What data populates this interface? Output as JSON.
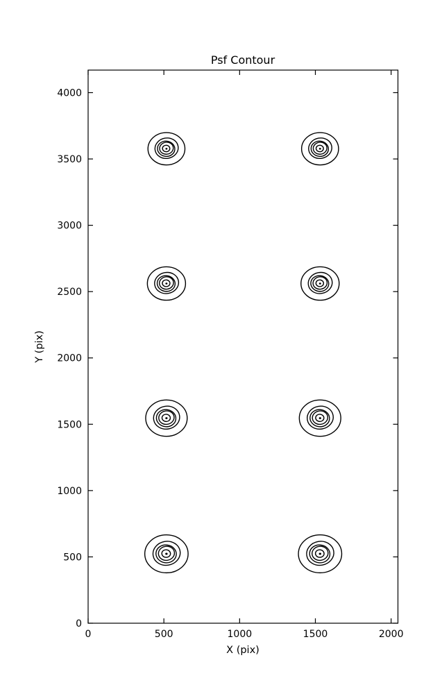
{
  "figure": {
    "background": "#ffffff",
    "line_color": "#000000"
  },
  "chart_data": {
    "type": "contour",
    "title": "Psf Contour",
    "xlabel": "X (pix)",
    "ylabel": "Y (pix)",
    "xlim": [
      0,
      2045
    ],
    "ylim": [
      0,
      4170
    ],
    "xticks": [
      0,
      500,
      1000,
      1500,
      2000
    ],
    "yticks": [
      0,
      500,
      1000,
      1500,
      2000,
      2500,
      3000,
      3500,
      4000
    ],
    "grid": false,
    "legend": "none",
    "clusters": [
      {
        "cx": 517,
        "cy": 3577,
        "outer_r": 122
      },
      {
        "cx": 1531,
        "cy": 3577,
        "outer_r": 122
      },
      {
        "cx": 517,
        "cy": 2561,
        "outer_r": 126
      },
      {
        "cx": 1531,
        "cy": 2561,
        "outer_r": 126
      },
      {
        "cx": 517,
        "cy": 1546,
        "outer_r": 137
      },
      {
        "cx": 1531,
        "cy": 1546,
        "outer_r": 137
      },
      {
        "cx": 517,
        "cy": 523,
        "outer_r": 143
      },
      {
        "cx": 1531,
        "cy": 523,
        "outer_r": 143
      }
    ],
    "ring_fractions": [
      1.0,
      0.63,
      0.47,
      0.37,
      0.2
    ],
    "center_dot_fraction": 0.055
  }
}
